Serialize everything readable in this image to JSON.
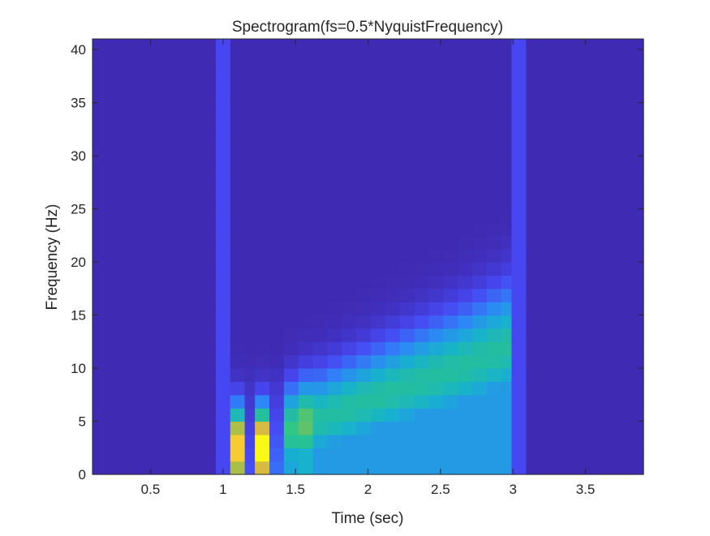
{
  "chart_data": {
    "type": "heatmap",
    "title": "Spectrogram(fs=0.5*NyquistFrequency)",
    "xlabel": "Time (sec)",
    "ylabel": "Frequency (Hz)",
    "xlim": [
      0.1,
      3.9
    ],
    "ylim": [
      0,
      41
    ],
    "xticks": [
      0.5,
      1,
      1.5,
      2,
      2.5,
      3,
      3.5
    ],
    "xtick_labels": [
      "0.5",
      "1",
      "1.5",
      "2",
      "2.5",
      "3",
      "3.5"
    ],
    "yticks": [
      0,
      5,
      10,
      15,
      20,
      25,
      30,
      35,
      40
    ],
    "ytick_labels": [
      "0",
      "5",
      "10",
      "15",
      "20",
      "25",
      "30",
      "35",
      "40"
    ],
    "colormap": "parula",
    "colormap_stops": [
      "#3e26a8",
      "#4748f3",
      "#2e87f7",
      "#17b1cf",
      "#2ac686",
      "#a4be49",
      "#f5ba3d",
      "#f9fb15"
    ],
    "cells": {
      "frequency_bin_hz": 1.25,
      "frequency_bins": 33,
      "background_value": 0.02,
      "columns": [
        {
          "t0": 0.1,
          "t1": 0.95,
          "type": "background"
        },
        {
          "t0": 0.95,
          "t1": 1.05,
          "type": "broadband",
          "level": 0.14
        },
        {
          "t0": 1.05,
          "t1": 1.15,
          "type": "ridge",
          "center_hz": 2.5,
          "peak": 0.9,
          "width_hz": 3.8
        },
        {
          "t0": 1.15,
          "t1": 1.22,
          "type": "gap",
          "level": 0.15
        },
        {
          "t0": 1.22,
          "t1": 1.32,
          "type": "ridge",
          "center_hz": 2.5,
          "peak": 1.0,
          "width_hz": 3.8
        },
        {
          "t0": 1.32,
          "t1": 1.42,
          "type": "gap",
          "level": 0.22
        },
        {
          "t0": 1.42,
          "t1": 1.52,
          "type": "ridge",
          "center_hz": 4.2,
          "peak": 0.56,
          "width_hz": 4.0
        },
        {
          "t0": 1.52,
          "t1": 1.62,
          "type": "ridge",
          "center_hz": 4.8,
          "peak": 0.62,
          "width_hz": 4.1
        },
        {
          "t0": 1.62,
          "t1": 1.72,
          "type": "ridge",
          "center_hz": 5.3,
          "peak": 0.5,
          "width_hz": 4.2
        },
        {
          "t0": 1.72,
          "t1": 1.82,
          "type": "ridge",
          "center_hz": 5.8,
          "peak": 0.5,
          "width_hz": 4.3
        },
        {
          "t0": 1.82,
          "t1": 1.92,
          "type": "ridge",
          "center_hz": 6.3,
          "peak": 0.5,
          "width_hz": 4.4
        },
        {
          "t0": 1.92,
          "t1": 2.02,
          "type": "ridge",
          "center_hz": 6.8,
          "peak": 0.5,
          "width_hz": 4.5
        },
        {
          "t0": 2.02,
          "t1": 2.12,
          "type": "ridge",
          "center_hz": 7.3,
          "peak": 0.5,
          "width_hz": 4.6
        },
        {
          "t0": 2.12,
          "t1": 2.22,
          "type": "ridge",
          "center_hz": 7.8,
          "peak": 0.5,
          "width_hz": 4.7
        },
        {
          "t0": 2.22,
          "t1": 2.32,
          "type": "ridge",
          "center_hz": 8.3,
          "peak": 0.5,
          "width_hz": 4.8
        },
        {
          "t0": 2.32,
          "t1": 2.42,
          "type": "ridge",
          "center_hz": 8.8,
          "peak": 0.5,
          "width_hz": 4.9
        },
        {
          "t0": 2.42,
          "t1": 2.52,
          "type": "ridge",
          "center_hz": 9.3,
          "peak": 0.5,
          "width_hz": 5.0
        },
        {
          "t0": 2.52,
          "t1": 2.62,
          "type": "ridge",
          "center_hz": 9.8,
          "peak": 0.5,
          "width_hz": 5.1
        },
        {
          "t0": 2.62,
          "t1": 2.72,
          "type": "ridge",
          "center_hz": 10.3,
          "peak": 0.5,
          "width_hz": 5.2
        },
        {
          "t0": 2.72,
          "t1": 2.82,
          "type": "ridge",
          "center_hz": 10.9,
          "peak": 0.5,
          "width_hz": 5.3
        },
        {
          "t0": 2.82,
          "t1": 2.92,
          "type": "ridge",
          "center_hz": 11.5,
          "peak": 0.5,
          "width_hz": 5.4
        },
        {
          "t0": 2.92,
          "t1": 2.99,
          "type": "ridge",
          "center_hz": 12.0,
          "peak": 0.5,
          "width_hz": 5.5
        },
        {
          "t0": 2.99,
          "t1": 3.09,
          "type": "broadband",
          "level": 0.14
        },
        {
          "t0": 3.09,
          "t1": 3.9,
          "type": "background"
        }
      ]
    }
  }
}
